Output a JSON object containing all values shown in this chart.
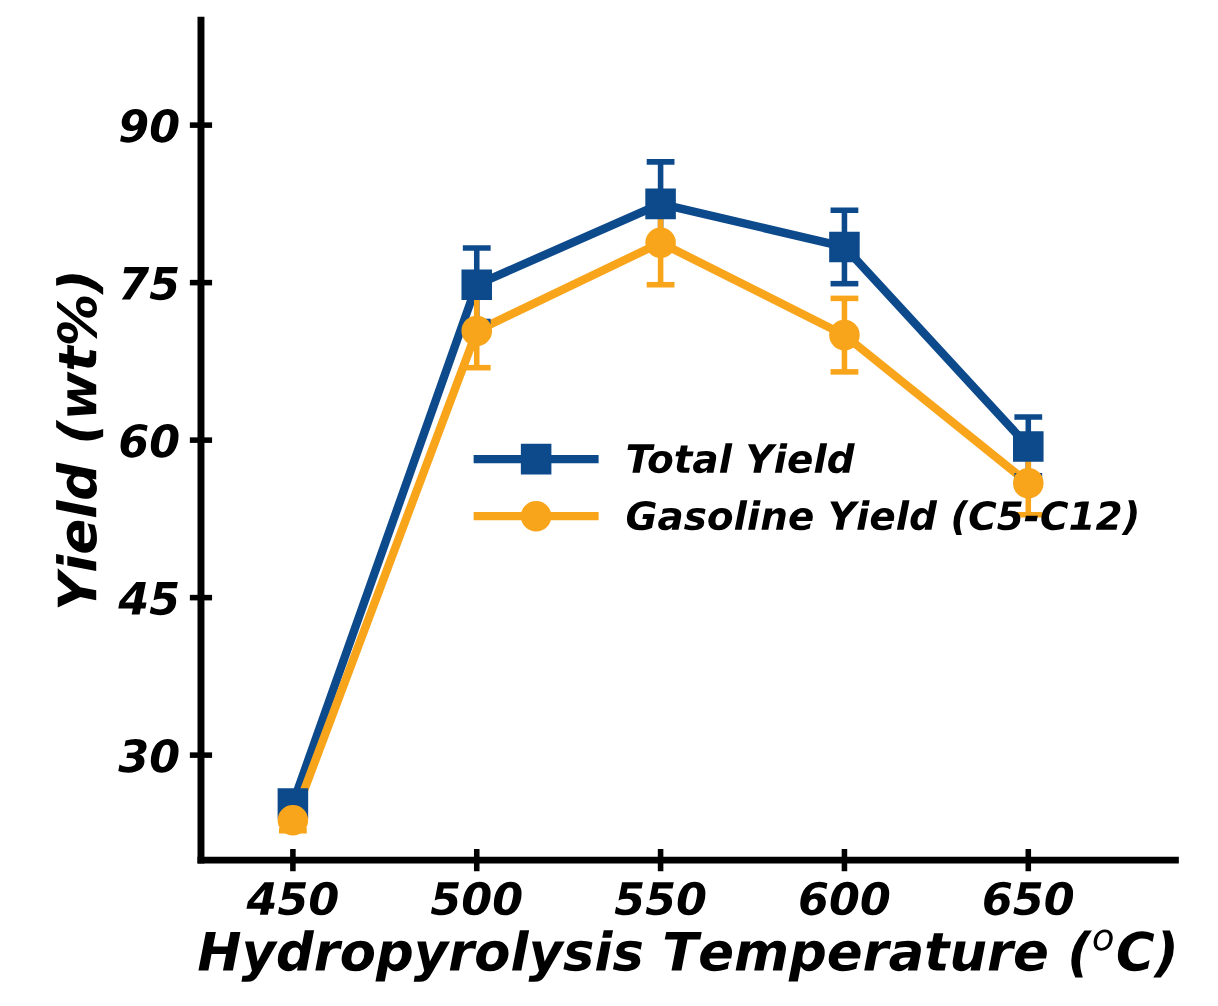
{
  "chart_data": {
    "type": "line",
    "xlabel": "Hydropyrolysis Temperature ($^{o}$C)",
    "ylabel": "Yield (wt%)",
    "x": [
      450,
      500,
      550,
      600,
      650
    ],
    "series": [
      {
        "name": "Total Yield",
        "color": "#0d4a8c",
        "marker": "square",
        "values": [
          25.4,
          74.8,
          82.5,
          78.4,
          59.4
        ],
        "errors": [
          1,
          3.5,
          4,
          3.5,
          2.8
        ]
      },
      {
        "name": "Gasoline Yield (C5-C12)",
        "color": "#f9a51b",
        "marker": "circle",
        "values": [
          23.8,
          70.4,
          78.8,
          70,
          55.9
        ],
        "errors": [
          1,
          3.5,
          4,
          3.5,
          3
        ]
      }
    ],
    "xlim": [
      425,
      690
    ],
    "xticks": [
      450,
      500,
      550,
      600,
      650
    ],
    "ylim": [
      20,
      100
    ],
    "yticks": [
      30,
      45,
      60,
      75,
      90
    ],
    "legend": "right",
    "grid": false,
    "line_style": "solid"
  }
}
